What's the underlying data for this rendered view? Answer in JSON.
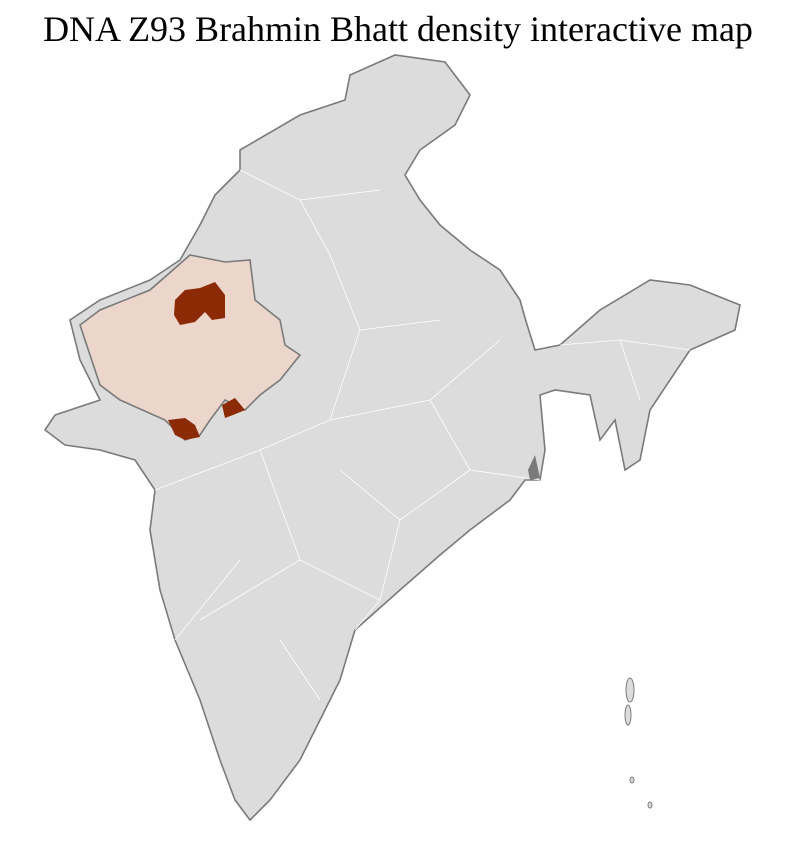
{
  "title": "DNA Z93 Brahmin Bhatt density interactive map",
  "colors": {
    "base": "#dcdcdc",
    "low_density": "#ecd6cb",
    "high_density": "#8b2a05",
    "border": "#7a7a7a",
    "district_lines": "#ffffff"
  }
}
